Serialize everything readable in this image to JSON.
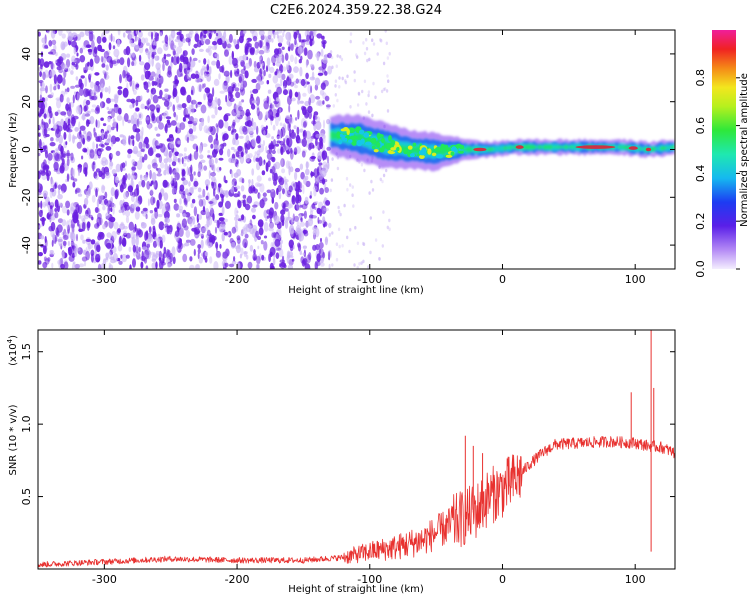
{
  "title": "C2E6.2024.359.22.38.G24",
  "colors": {
    "scatter": "#6a1fe0",
    "scatter_light": "#c9b3f5",
    "snr_line": "#e8312f",
    "ridge_core": "#e0203a",
    "ridge_mid": "#1ee36a",
    "ridge_edge": "#1b6ff0",
    "ridge_outer": "#7b2ff0"
  },
  "colorbar": {
    "label": "Normalized spectral amplitude",
    "ticks": [
      "0.0",
      "0.2",
      "0.4",
      "0.6",
      "0.8"
    ],
    "tick_values": [
      0,
      0.2,
      0.4,
      0.6,
      0.8
    ],
    "range": [
      0,
      1
    ],
    "colormap": "rainbow (lavender → blue → cyan → green → yellow → red → magenta)"
  },
  "chart_data": [
    {
      "type": "heatmap",
      "xlabel": "Height of straight line (km)",
      "ylabel": "Frequency (Hz)",
      "xlim": [
        -350,
        130
      ],
      "ylim": [
        -50,
        50
      ],
      "x_ticks": [
        -300,
        -200,
        -100,
        0,
        100
      ],
      "y_ticks": [
        -40,
        -20,
        0,
        20,
        40
      ],
      "x_tick_labels": [
        "-300",
        "-200",
        "-100",
        "0",
        "100"
      ],
      "y_tick_labels": [
        "-40",
        "-20",
        "0",
        "20",
        "40"
      ],
      "noise_region_x": [
        -350,
        -130
      ],
      "ridge": {
        "x": [
          -130,
          -110,
          -90,
          -70,
          -50,
          -30,
          -10,
          10,
          30,
          50,
          70,
          90,
          110,
          130
        ],
        "frequency": [
          6,
          5,
          2,
          0,
          -1,
          0,
          0,
          1,
          1,
          1,
          1,
          1,
          0,
          1
        ],
        "halfwidth": [
          5,
          6,
          6,
          5,
          5,
          3,
          2,
          2,
          2,
          2,
          2,
          2,
          2,
          2
        ],
        "peak_amplitude": [
          0.5,
          0.5,
          0.55,
          0.6,
          0.7,
          0.75,
          0.85,
          0.8,
          0.75,
          0.8,
          0.95,
          0.9,
          0.85,
          0.8
        ]
      }
    },
    {
      "type": "line",
      "xlabel": "Height of straight line (km)",
      "ylabel": "SNR (10 * v/v)",
      "y_scale_label": "(x10",
      "y_scale_exponent": "4",
      "y_scale_suffix": ")",
      "xlim": [
        -350,
        130
      ],
      "ylim": [
        0,
        1.65
      ],
      "x_ticks": [
        -300,
        -200,
        -100,
        0,
        100
      ],
      "y_ticks": [
        0.5,
        1.0,
        1.5
      ],
      "x_tick_labels": [
        "-300",
        "-200",
        "-100",
        "0",
        "100"
      ],
      "y_tick_labels": [
        "0.5",
        "1.0",
        "1.5"
      ],
      "series": [
        {
          "x": [
            -350,
            -300,
            -250,
            -200,
            -150,
            -120,
            -100,
            -80,
            -60,
            -50,
            -40,
            -30,
            -20,
            -10,
            0,
            10,
            20,
            30,
            40,
            60,
            80,
            100,
            110,
            120,
            130
          ],
          "y": [
            0.03,
            0.05,
            0.07,
            0.06,
            0.06,
            0.08,
            0.12,
            0.15,
            0.2,
            0.25,
            0.3,
            0.35,
            0.4,
            0.5,
            0.55,
            0.62,
            0.72,
            0.8,
            0.86,
            0.87,
            0.88,
            0.87,
            0.85,
            0.84,
            0.8
          ]
        }
      ],
      "spikes": [
        {
          "x": -28,
          "y": 0.92
        },
        {
          "x": -22,
          "y": 0.85
        },
        {
          "x": -15,
          "y": 0.8
        },
        {
          "x": 97,
          "y": 1.22
        },
        {
          "x": 112,
          "y": 1.65
        },
        {
          "x": 114,
          "y": 1.25
        },
        {
          "x": 112,
          "y": 0.12
        }
      ]
    }
  ]
}
